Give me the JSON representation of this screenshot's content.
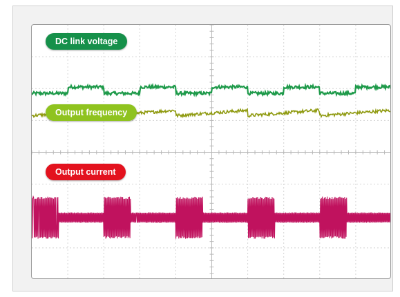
{
  "chart_data": {
    "type": "line",
    "title": "",
    "xlabel": "",
    "ylabel": "",
    "grid": true,
    "grid_divisions": {
      "x": 10,
      "y": 8
    },
    "x_range": [
      0,
      10
    ],
    "y_range": [
      0,
      8
    ],
    "series": [
      {
        "name": "DC link voltage",
        "color": "#1e9a4a",
        "pattern": "square",
        "period_div": 2,
        "phase_div": 1.0,
        "high_y_div": 6.05,
        "low_y_div": 5.85,
        "noise_div": 0.05
      },
      {
        "name": "Output frequency",
        "color": "#8f9a10",
        "pattern": "sawtooth",
        "period_div": 2,
        "phase_div": 0.0,
        "y_min_div": 5.15,
        "y_max_div": 5.32,
        "noise_div": 0.05
      },
      {
        "name": "Output current",
        "color": "#c0125e",
        "pattern": "burst",
        "period_div": 2,
        "phase_div": 0.0,
        "burst_width_div": 0.75,
        "center_y_div": 1.95,
        "burst_amplitude_div": 0.65,
        "baseline_amplitude_div": 0.16
      }
    ]
  },
  "labels": {
    "dc": {
      "text": "DC link voltage",
      "color": "#16904a"
    },
    "freq": {
      "text": "Output frequency",
      "color": "#8fc31f"
    },
    "cur": {
      "text": "Output current",
      "color": "#e3121e"
    }
  }
}
